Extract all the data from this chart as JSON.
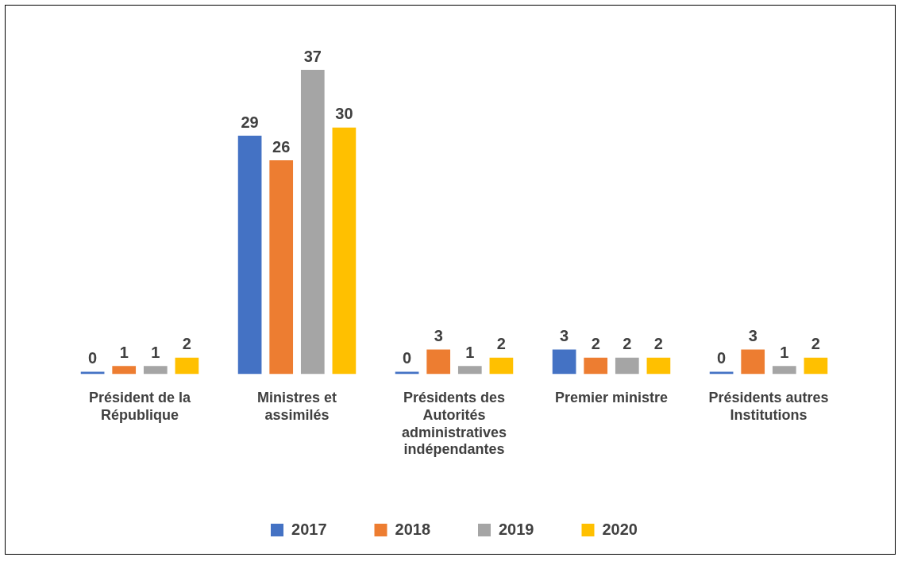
{
  "chart_data": {
    "type": "bar",
    "categories": [
      "Président de la République",
      "Ministres et assimilés",
      "Présidents des Autorités administratives indépendantes",
      "Premier ministre",
      "Présidents autres Institutions"
    ],
    "series": [
      {
        "name": "2017",
        "color": "#4472c4",
        "values": [
          0,
          29,
          0,
          3,
          0
        ]
      },
      {
        "name": "2018",
        "color": "#ed7d31",
        "values": [
          1,
          26,
          3,
          2,
          3
        ]
      },
      {
        "name": "2019",
        "color": "#a5a5a5",
        "values": [
          1,
          37,
          1,
          2,
          1
        ]
      },
      {
        "name": "2020",
        "color": "#ffc000",
        "values": [
          2,
          30,
          2,
          2,
          2
        ]
      }
    ],
    "data_labels": true,
    "grid": false,
    "legend": "bottom"
  }
}
